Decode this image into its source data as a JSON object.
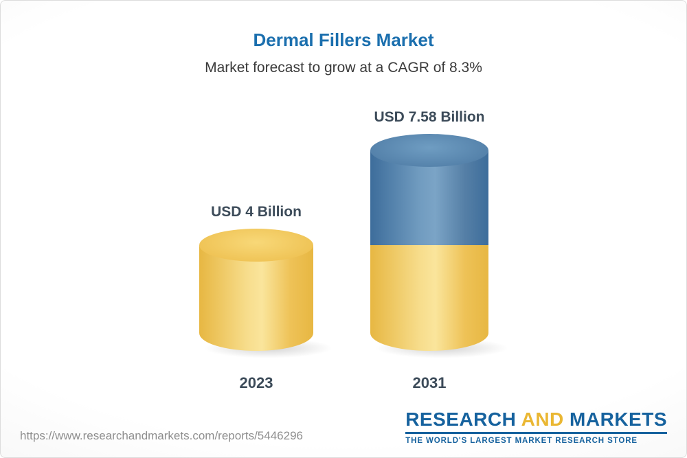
{
  "chart_data": {
    "type": "bar",
    "chart_style": "3d-cylinder",
    "title": "Dermal Fillers Market",
    "subtitle": "Market forecast to grow at a CAGR of 8.3%",
    "cagr_percent": 8.3,
    "unit": "USD Billion",
    "categories": [
      "2023",
      "2031"
    ],
    "values": [
      4,
      7.58
    ],
    "value_labels": [
      "USD 4 Billion",
      "USD 7.58 Billion"
    ],
    "stacking_note": "2031 cylinder: yellow base segment equals 2023 value, blue top segment is the growth to 7.58",
    "xlabel": "",
    "ylabel": "",
    "legend": "none",
    "grid": false,
    "colors": {
      "bar_2023": "#f0c85c",
      "bar_2031_growth": "#5a89b0",
      "bar_2031_base": "#f0c85c",
      "title_text": "#1b6fae",
      "label_text": "#3c4b59"
    }
  },
  "footer": {
    "url": "https://www.researchandmarkets.com/reports/5446296",
    "logo": {
      "word1": "RESEARCH",
      "word2": "AND",
      "word3": "MARKETS",
      "tagline": "THE WORLD'S LARGEST MARKET RESEARCH STORE"
    }
  }
}
